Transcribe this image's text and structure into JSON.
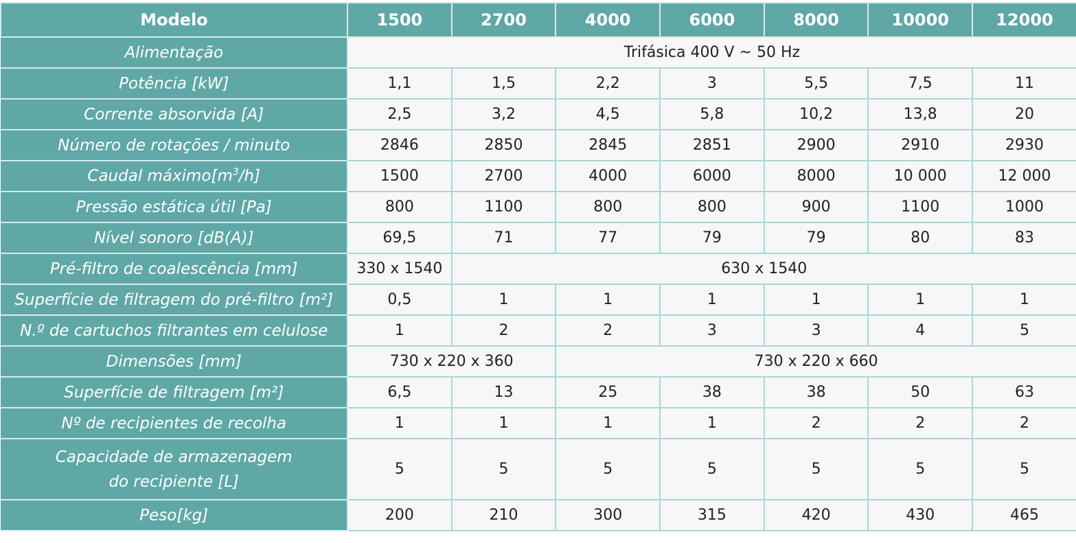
{
  "header": {
    "label": "Modelo",
    "models": [
      "1500",
      "2700",
      "4000",
      "6000",
      "8000",
      "10000",
      "12000"
    ]
  },
  "rows": {
    "alimentacao": {
      "label": "Alimentação",
      "value": "Trifásica 400 V ~ 50 Hz"
    },
    "potencia": {
      "label": "Potência [kW]",
      "values": [
        "1,1",
        "1,5",
        "2,2",
        "3",
        "5,5",
        "7,5",
        "11"
      ]
    },
    "corrente": {
      "label": "Corrente absorvida [A]",
      "values": [
        "2,5",
        "3,2",
        "4,5",
        "5,8",
        "10,2",
        "13,8",
        "20"
      ]
    },
    "rotacoes": {
      "label": "Número de rotações / minuto",
      "values": [
        "2846",
        "2850",
        "2845",
        "2851",
        "2900",
        "2910",
        "2930"
      ]
    },
    "caudal": {
      "label_prefix": "Caudal máximo[m",
      "label_sup": "3",
      "label_suffix": "/h]",
      "values": [
        "1500",
        "2700",
        "4000",
        "6000",
        "8000",
        "10 000",
        "12 000"
      ]
    },
    "pressao": {
      "label": "Pressão estática útil [Pa]",
      "values": [
        "800",
        "1100",
        "800",
        "800",
        "900",
        "1100",
        "1000"
      ]
    },
    "nivel": {
      "label": "Nível sonoro [dB(A)]",
      "values": [
        "69,5",
        "71",
        "77",
        "79",
        "79",
        "80",
        "83"
      ]
    },
    "prefiltro": {
      "label": "Pré-filtro de coalescência [mm]",
      "first": "330 x 1540",
      "rest": "630 x 1540"
    },
    "sup_prefiltro": {
      "label": "Superfície de filtragem do pré-filtro [m²]",
      "values": [
        "0,5",
        "1",
        "1",
        "1",
        "1",
        "1",
        "1"
      ]
    },
    "cartuchos": {
      "label": "N.º de cartuchos filtrantes em celulose",
      "values": [
        "1",
        "2",
        "2",
        "3",
        "3",
        "4",
        "5"
      ]
    },
    "dimensoes": {
      "label": "Dimensões [mm]",
      "first": "730 x 220 x 360",
      "rest": "730 x 220 x 660"
    },
    "sup_filtragem": {
      "label": "Superfície de filtragem [m²]",
      "values": [
        "6,5",
        "13",
        "25",
        "38",
        "38",
        "50",
        "63"
      ]
    },
    "recipientes": {
      "label": "Nº de recipientes de recolha",
      "values": [
        "1",
        "1",
        "1",
        "1",
        "2",
        "2",
        "2"
      ]
    },
    "capacidade": {
      "label_line1": "Capacidade de armazenagem",
      "label_line2": "do recipiente [L]",
      "values": [
        "5",
        "5",
        "5",
        "5",
        "5",
        "5",
        "5"
      ]
    },
    "peso": {
      "label": "Peso[kg]",
      "values": [
        "200",
        "210",
        "300",
        "315",
        "420",
        "430",
        "465"
      ]
    }
  },
  "colors": {
    "header_bg": "#5fa8a6",
    "cell_bg": "#f7f7f7",
    "grid": "#a9d6d6"
  }
}
